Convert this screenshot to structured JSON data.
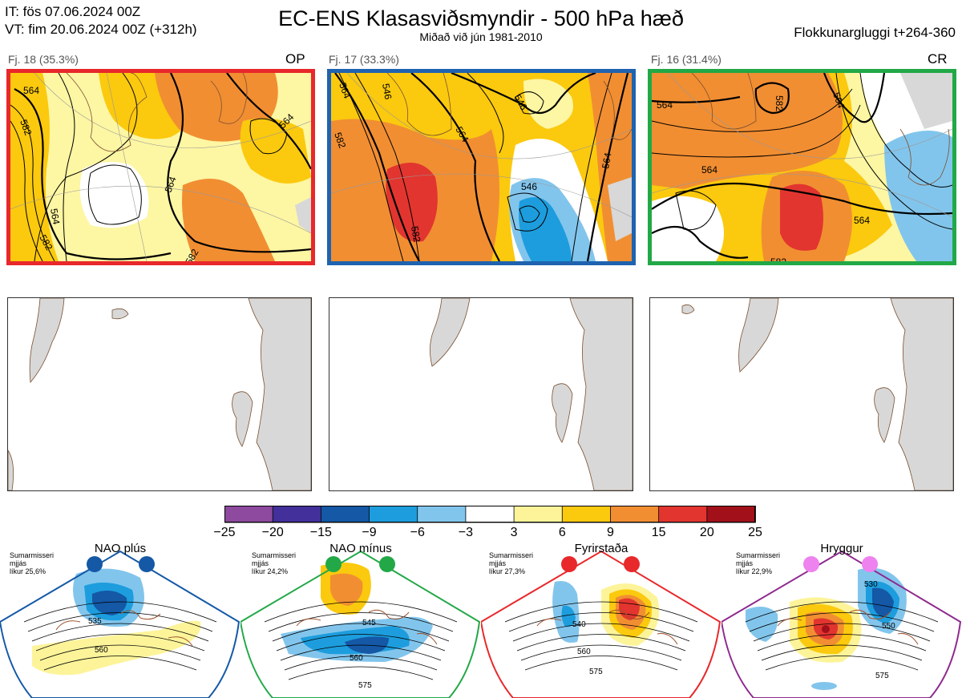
{
  "header": {
    "init_time": "IT: fös 07.06.2024 00Z",
    "valid_time": "VT: fim 20.06.2024 00Z  (+312h)",
    "title": "EC-ENS Klasasviðsmyndir - 500 hPa hæð",
    "subtitle": "Miðað við jún 1981-2010",
    "window": "Flokkunargluggi t+264-360"
  },
  "clusters": [
    {
      "label": "Fj. 18 (35.3%)",
      "tag": "OP",
      "members": 18,
      "percent": 35.3,
      "border_color": "#e8282b",
      "contour_labels": [
        "564",
        "582",
        "564",
        "582",
        "582",
        "564",
        "564"
      ]
    },
    {
      "label": "Fj. 17 (33.3%)",
      "tag": "",
      "members": 17,
      "percent": 33.3,
      "border_color": "#1f63b0",
      "contour_labels": [
        "564",
        "546",
        "546",
        "582",
        "564",
        "582",
        "564",
        "546"
      ]
    },
    {
      "label": "Fj. 16 (31.4%)",
      "tag": "CR",
      "members": 16,
      "percent": 31.4,
      "border_color": "#22a847",
      "contour_labels": [
        "564",
        "582",
        "564",
        "564",
        "564",
        "582"
      ]
    }
  ],
  "colorbar": {
    "ticks": [
      "−25",
      "−20",
      "−15",
      "−9",
      "−6",
      "−3",
      "3",
      "6",
      "9",
      "15",
      "20",
      "25"
    ],
    "colors": [
      "#8d4a9e",
      "#43309a",
      "#1458a6",
      "#1d9ddd",
      "#82c5ec",
      "#ffffff",
      "#fdf49a",
      "#fbc90e",
      "#f18e32",
      "#e2352f",
      "#a2101a"
    ]
  },
  "regimes": [
    {
      "name": "NAO plús",
      "season": "Sumarmisseri",
      "note": "mjjás",
      "probability": "líkur 25,6%",
      "color": "#1458a6",
      "contour_labels": [
        "535",
        "560"
      ]
    },
    {
      "name": "NAO mínus",
      "season": "Sumarmisseri",
      "note": "mjjás",
      "probability": "líkur 24,2%",
      "color": "#22a847",
      "contour_labels": [
        "545",
        "560",
        "575"
      ]
    },
    {
      "name": "Fyrirstaða",
      "season": "Sumarmisseri",
      "note": "mjjás",
      "probability": "líkur 27,3%",
      "color": "#e8282b",
      "contour_labels": [
        "540",
        "560",
        "575"
      ]
    },
    {
      "name": "Hryggur",
      "season": "Sumarmisseri",
      "note": "mjjás",
      "probability": "líkur 22,9%",
      "color": "#8e2a8e",
      "contour_labels": [
        "530",
        "550",
        "575"
      ]
    }
  ]
}
